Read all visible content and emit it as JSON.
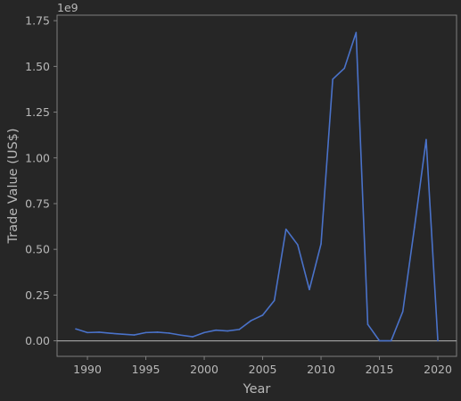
{
  "chart_data": {
    "type": "line",
    "title": "",
    "xlabel": "Year",
    "ylabel": "Trade Value (US$)",
    "y_offset_text": "1e9",
    "xlim": [
      1987.4,
      2021.6
    ],
    "ylim": [
      -0.085,
      1.78
    ],
    "y_multiplier": 1000000000,
    "x_ticks": [
      1990,
      1995,
      2000,
      2005,
      2010,
      2015,
      2020
    ],
    "y_ticks": [
      "0.00",
      "0.25",
      "0.50",
      "0.75",
      "1.00",
      "1.25",
      "1.50",
      "1.75"
    ],
    "grid": false,
    "series": [
      {
        "color": "#4a72c9",
        "x": [
          1989,
          1990,
          1991,
          1992,
          1993,
          1994,
          1995,
          1996,
          1997,
          1998,
          1999,
          2000,
          2001,
          2002,
          2003,
          2004,
          2005,
          2006,
          2007,
          2008,
          2009,
          2010,
          2011,
          2012,
          2013,
          2014,
          2015,
          2016,
          2017,
          2018,
          2019,
          2020
        ],
        "y": [
          0.065,
          0.045,
          0.047,
          0.041,
          0.036,
          0.032,
          0.045,
          0.047,
          0.042,
          0.031,
          0.022,
          0.045,
          0.058,
          0.054,
          0.062,
          0.11,
          0.14,
          0.22,
          0.61,
          0.525,
          0.28,
          0.53,
          1.43,
          1.49,
          1.685,
          0.09,
          0.0,
          0.0,
          0.16,
          0.62,
          1.1,
          0.0
        ]
      }
    ]
  },
  "colors": {
    "background": "#262626",
    "spine": "#7f7f7f",
    "zero_line": "#9a9a9a",
    "text": "#b8b8b8"
  }
}
